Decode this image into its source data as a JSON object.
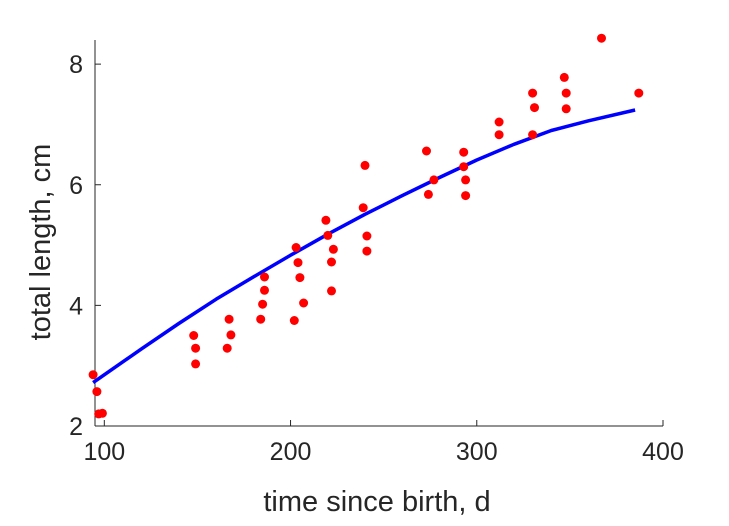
{
  "chart_data": {
    "type": "scatter",
    "xlabel": "time since birth, d",
    "ylabel": "total length, cm",
    "xlim": [
      95,
      400
    ],
    "ylim": [
      2,
      8.4
    ],
    "xticks": [
      100,
      200,
      300,
      400
    ],
    "yticks": [
      2,
      4,
      6,
      8
    ],
    "grid": false,
    "colors": {
      "points": "#ff0000",
      "fit_line": "#0000ff",
      "axes": "#262626"
    },
    "series": [
      {
        "kind": "scatter",
        "points": [
          [
            94,
            2.85
          ],
          [
            96,
            2.57
          ],
          [
            97,
            2.2
          ],
          [
            99,
            2.21
          ],
          [
            148,
            3.5
          ],
          [
            149,
            3.29
          ],
          [
            149,
            3.03
          ],
          [
            166,
            3.29
          ],
          [
            167,
            3.77
          ],
          [
            168,
            3.51
          ],
          [
            184,
            3.77
          ],
          [
            185,
            4.02
          ],
          [
            186,
            4.25
          ],
          [
            186,
            4.47
          ],
          [
            202,
            3.75
          ],
          [
            203,
            4.96
          ],
          [
            204,
            4.71
          ],
          [
            205,
            4.46
          ],
          [
            207,
            4.04
          ],
          [
            219,
            5.41
          ],
          [
            220,
            5.16
          ],
          [
            222,
            4.72
          ],
          [
            222,
            4.24
          ],
          [
            223,
            4.93
          ],
          [
            239,
            5.62
          ],
          [
            240,
            6.32
          ],
          [
            241,
            5.15
          ],
          [
            241,
            4.9
          ],
          [
            273,
            6.56
          ],
          [
            274,
            5.84
          ],
          [
            277,
            6.08
          ],
          [
            293,
            6.54
          ],
          [
            293,
            6.3
          ],
          [
            294,
            6.08
          ],
          [
            294,
            5.82
          ],
          [
            312,
            7.04
          ],
          [
            312,
            6.83
          ],
          [
            330,
            7.52
          ],
          [
            330,
            6.83
          ],
          [
            331,
            7.28
          ],
          [
            347,
            7.78
          ],
          [
            348,
            7.52
          ],
          [
            348,
            7.26
          ],
          [
            367,
            8.43
          ],
          [
            387,
            7.52
          ]
        ]
      },
      {
        "kind": "line",
        "points": [
          [
            94,
            2.72
          ],
          [
            120,
            3.28
          ],
          [
            140,
            3.7
          ],
          [
            160,
            4.1
          ],
          [
            180,
            4.47
          ],
          [
            200,
            4.83
          ],
          [
            220,
            5.18
          ],
          [
            240,
            5.51
          ],
          [
            260,
            5.82
          ],
          [
            280,
            6.12
          ],
          [
            300,
            6.41
          ],
          [
            320,
            6.67
          ],
          [
            340,
            6.9
          ],
          [
            360,
            7.06
          ],
          [
            385,
            7.24
          ]
        ]
      }
    ]
  }
}
